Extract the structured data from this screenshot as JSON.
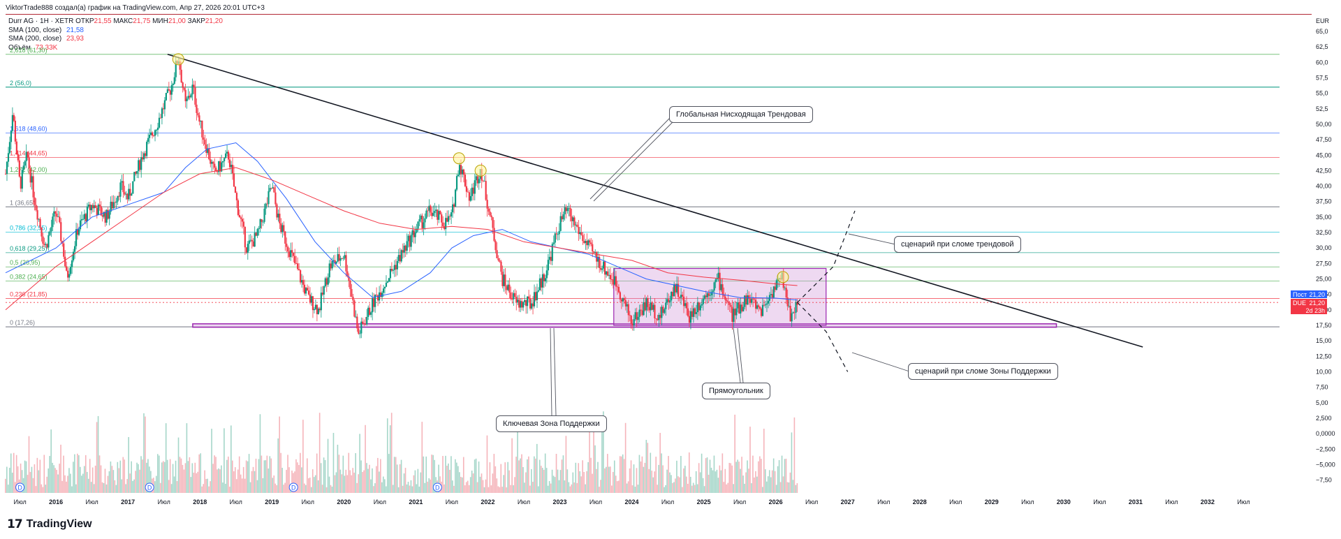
{
  "header": {
    "credit": "ViktorTrade888 создал(а) график на TradingView.com, Апр 27, 2026 20:01 UTC+3",
    "symbol": "Durr AG · 1Н · XETR",
    "ohlc": [
      {
        "label": "ОТКР",
        "value": "21,55"
      },
      {
        "label": "МАКС",
        "value": "21,75"
      },
      {
        "label": "МИН",
        "value": "21,00"
      },
      {
        "label": "ЗАКР",
        "value": "21,20"
      }
    ],
    "indicators": [
      {
        "label": "SMA (100, close)",
        "value": "21,58",
        "color": "#2962ff"
      },
      {
        "label": "SMA (200, close)",
        "value": "23,93",
        "color": "#f23645"
      },
      {
        "label": "Объём",
        "value": "73,33K",
        "color": "#f23645"
      }
    ]
  },
  "brand": {
    "logo": "17",
    "name": "TradingView"
  },
  "price_tags": [
    {
      "label": "Пост",
      "value": "21,20",
      "color": "#2962ff"
    },
    {
      "label": "DUE",
      "value": "21,20",
      "color": "#f23645"
    },
    {
      "label": "",
      "value": "2d 23h",
      "color": "#f23645"
    }
  ],
  "callouts": [
    {
      "text": "Глобальная Нисходящая Трендовая"
    },
    {
      "text": "сценарий при сломе трендовой"
    },
    {
      "text": "сценарий при сломе Зоны Поддержки"
    },
    {
      "text": "Прямоугольник"
    },
    {
      "text": "Ключевая Зона Поддержки"
    }
  ],
  "chart_data": {
    "type": "candlestick",
    "currency": "EUR",
    "price_axis": {
      "min": 17.5,
      "max": 65.0,
      "step": 2.5,
      "labels": [
        "65,0",
        "62,5",
        "60,0",
        "57,5",
        "55,0",
        "52,5",
        "50,00",
        "47,50",
        "45,00",
        "42,50",
        "40,00",
        "37,50",
        "35,00",
        "32,50",
        "30,00",
        "27,50",
        "25,00",
        "22,50",
        "20,00",
        "17,50",
        "15,00",
        "12,50",
        "10,00",
        "7,50",
        "5,00",
        "2,500",
        "0,0000",
        "−2,500",
        "−5,000",
        "−7,50"
      ]
    },
    "time_axis": {
      "start": 2015.3,
      "end": 2033.0,
      "labels": [
        {
          "t": 2015.5,
          "text": "Июл"
        },
        {
          "t": 2016.0,
          "text": "2016"
        },
        {
          "t": 2016.5,
          "text": "Июл"
        },
        {
          "t": 2017.0,
          "text": "2017"
        },
        {
          "t": 2017.5,
          "text": "Июл"
        },
        {
          "t": 2018.0,
          "text": "2018"
        },
        {
          "t": 2018.5,
          "text": "Июл"
        },
        {
          "t": 2019.0,
          "text": "2019"
        },
        {
          "t": 2019.5,
          "text": "Июл"
        },
        {
          "t": 2020.0,
          "text": "2020"
        },
        {
          "t": 2020.5,
          "text": "Июл"
        },
        {
          "t": 2021.0,
          "text": "2021"
        },
        {
          "t": 2021.5,
          "text": "Июл"
        },
        {
          "t": 2022.0,
          "text": "2022"
        },
        {
          "t": 2022.5,
          "text": "Июл"
        },
        {
          "t": 2023.0,
          "text": "2023"
        },
        {
          "t": 2023.5,
          "text": "Июл"
        },
        {
          "t": 2024.0,
          "text": "2024"
        },
        {
          "t": 2024.5,
          "text": "Июл"
        },
        {
          "t": 2025.0,
          "text": "2025"
        },
        {
          "t": 2025.5,
          "text": "Июл"
        },
        {
          "t": 2026.0,
          "text": "2026"
        },
        {
          "t": 2026.5,
          "text": "Июл"
        },
        {
          "t": 2027.0,
          "text": "2027"
        },
        {
          "t": 2027.5,
          "text": "Июл"
        },
        {
          "t": 2028.0,
          "text": "2028"
        },
        {
          "t": 2028.5,
          "text": "Июл"
        },
        {
          "t": 2029.0,
          "text": "2029"
        },
        {
          "t": 2029.5,
          "text": "Июл"
        },
        {
          "t": 2030.0,
          "text": "2030"
        },
        {
          "t": 2030.5,
          "text": "Июл"
        },
        {
          "t": 2031.0,
          "text": "2031"
        },
        {
          "t": 2031.5,
          "text": "Июл"
        },
        {
          "t": 2032.0,
          "text": "2032"
        },
        {
          "t": 2032.5,
          "text": "Июл"
        }
      ]
    },
    "fib_levels": [
      {
        "label": "2,618 (61,30)",
        "price": 61.3,
        "color": "#4caf50"
      },
      {
        "label": "2 (56,0)",
        "price": 56.0,
        "color": "#089981"
      },
      {
        "label": "1,618 (48,60)",
        "price": 48.6,
        "color": "#2962ff"
      },
      {
        "label": "1,414 (44,65)",
        "price": 44.65,
        "color": "#f23645"
      },
      {
        "label": "1,272 (42,00)",
        "price": 42.0,
        "color": "#4caf50"
      },
      {
        "label": "1 (36,65)",
        "price": 36.65,
        "color": "#787b86"
      },
      {
        "label": "0,786 (32,55)",
        "price": 32.55,
        "color": "#00bcd4"
      },
      {
        "label": "0,618 (29,25)",
        "price": 29.25,
        "color": "#089981"
      },
      {
        "label": "0,5 (26,95)",
        "price": 26.95,
        "color": "#4caf50"
      },
      {
        "label": "0,382 (24,65)",
        "price": 24.65,
        "color": "#4caf50"
      },
      {
        "label": "0,236 (21,85)",
        "price": 21.85,
        "color": "#f23645"
      },
      {
        "label": "0 (17,26)",
        "price": 17.26,
        "color": "#787b86"
      }
    ],
    "price_path": [
      [
        2015.3,
        42
      ],
      [
        2015.4,
        52
      ],
      [
        2015.5,
        40
      ],
      [
        2015.6,
        45
      ],
      [
        2015.7,
        38
      ],
      [
        2015.85,
        30
      ],
      [
        2016.0,
        36
      ],
      [
        2016.1,
        30
      ],
      [
        2016.15,
        25
      ],
      [
        2016.3,
        33
      ],
      [
        2016.5,
        37
      ],
      [
        2016.7,
        35
      ],
      [
        2016.9,
        40
      ],
      [
        2017.0,
        38
      ],
      [
        2017.2,
        45
      ],
      [
        2017.4,
        50
      ],
      [
        2017.6,
        56
      ],
      [
        2017.7,
        61
      ],
      [
        2017.8,
        53
      ],
      [
        2017.9,
        56
      ],
      [
        2018.0,
        50
      ],
      [
        2018.1,
        46
      ],
      [
        2018.2,
        42
      ],
      [
        2018.4,
        45
      ],
      [
        2018.5,
        38
      ],
      [
        2018.65,
        30
      ],
      [
        2018.8,
        32
      ],
      [
        2019.0,
        40
      ],
      [
        2019.1,
        34
      ],
      [
        2019.3,
        28
      ],
      [
        2019.5,
        22
      ],
      [
        2019.65,
        20
      ],
      [
        2019.8,
        27
      ],
      [
        2020.0,
        29
      ],
      [
        2020.1,
        23
      ],
      [
        2020.2,
        16
      ],
      [
        2020.4,
        21
      ],
      [
        2020.6,
        25
      ],
      [
        2020.8,
        29
      ],
      [
        2021.0,
        33
      ],
      [
        2021.2,
        36
      ],
      [
        2021.4,
        34
      ],
      [
        2021.5,
        35
      ],
      [
        2021.6,
        44
      ],
      [
        2021.75,
        38
      ],
      [
        2021.9,
        43
      ],
      [
        2022.0,
        37
      ],
      [
        2022.2,
        25
      ],
      [
        2022.4,
        21
      ],
      [
        2022.6,
        21
      ],
      [
        2022.8,
        26
      ],
      [
        2023.0,
        34
      ],
      [
        2023.1,
        36
      ],
      [
        2023.25,
        33
      ],
      [
        2023.4,
        30
      ],
      [
        2023.6,
        27
      ],
      [
        2023.8,
        24
      ],
      [
        2024.0,
        18
      ],
      [
        2024.2,
        21
      ],
      [
        2024.4,
        19
      ],
      [
        2024.6,
        24
      ],
      [
        2024.8,
        19
      ],
      [
        2025.0,
        22
      ],
      [
        2025.2,
        25
      ],
      [
        2025.4,
        19
      ],
      [
        2025.6,
        22
      ],
      [
        2025.8,
        20
      ],
      [
        2026.0,
        24
      ],
      [
        2026.1,
        25
      ],
      [
        2026.2,
        19
      ],
      [
        2026.3,
        21.2
      ]
    ],
    "sma100_path": [
      [
        2015.3,
        26
      ],
      [
        2016.0,
        30
      ],
      [
        2016.5,
        35
      ],
      [
        2017.0,
        37
      ],
      [
        2017.5,
        39
      ],
      [
        2017.8,
        43
      ],
      [
        2018.1,
        46
      ],
      [
        2018.5,
        47
      ],
      [
        2018.8,
        44
      ],
      [
        2019.2,
        38
      ],
      [
        2019.6,
        31
      ],
      [
        2020.0,
        26
      ],
      [
        2020.4,
        22
      ],
      [
        2020.8,
        23
      ],
      [
        2021.2,
        26
      ],
      [
        2021.5,
        30
      ],
      [
        2021.8,
        32
      ],
      [
        2022.2,
        33
      ],
      [
        2022.6,
        31
      ],
      [
        2023.0,
        30
      ],
      [
        2023.4,
        29
      ],
      [
        2023.8,
        27
      ],
      [
        2024.2,
        25
      ],
      [
        2024.6,
        24
      ],
      [
        2025.0,
        23
      ],
      [
        2025.5,
        22
      ],
      [
        2026.0,
        21.9
      ],
      [
        2026.3,
        21.58
      ]
    ],
    "sma200_path": [
      [
        2015.3,
        20
      ],
      [
        2016.0,
        27
      ],
      [
        2016.5,
        31
      ],
      [
        2017.0,
        35
      ],
      [
        2017.5,
        39
      ],
      [
        2018.0,
        42
      ],
      [
        2018.5,
        43
      ],
      [
        2019.0,
        41
      ],
      [
        2019.5,
        38.5
      ],
      [
        2020.0,
        36
      ],
      [
        2020.5,
        34
      ],
      [
        2021.0,
        33
      ],
      [
        2021.5,
        33.5
      ],
      [
        2022.0,
        33
      ],
      [
        2022.5,
        31
      ],
      [
        2023.0,
        30
      ],
      [
        2023.5,
        29
      ],
      [
        2024.0,
        28
      ],
      [
        2024.5,
        26
      ],
      [
        2025.0,
        25.3
      ],
      [
        2025.5,
        24.8
      ],
      [
        2026.0,
        24.2
      ],
      [
        2026.3,
        23.93
      ]
    ],
    "trendline": {
      "from": [
        2017.55,
        61.3
      ],
      "to": [
        2031.1,
        14.0
      ]
    },
    "touch_points": [
      [
        2017.7,
        60.5
      ],
      [
        2021.6,
        44.5
      ],
      [
        2021.9,
        42.5
      ],
      [
        2026.1,
        25.3
      ]
    ],
    "rectangle": {
      "t1": 2023.75,
      "t2": 2026.7,
      "p1": 17.5,
      "p2": 26.7
    },
    "support_zone": {
      "t1": 2017.9,
      "t2": 2029.9,
      "p1": 17.2,
      "p2": 17.75
    },
    "scenario_up": [
      [
        2026.3,
        21.2
      ],
      [
        2026.8,
        27
      ],
      [
        2027.1,
        36
      ]
    ],
    "scenario_down": [
      [
        2026.3,
        21.2
      ],
      [
        2026.7,
        16.5
      ],
      [
        2027.0,
        10
      ]
    ],
    "volume_markers": [
      {
        "t": 2015.5,
        "text": "D"
      },
      {
        "t": 2017.3,
        "text": "D"
      },
      {
        "t": 2019.3,
        "text": "D"
      },
      {
        "t": 2021.3,
        "text": "D"
      }
    ]
  }
}
